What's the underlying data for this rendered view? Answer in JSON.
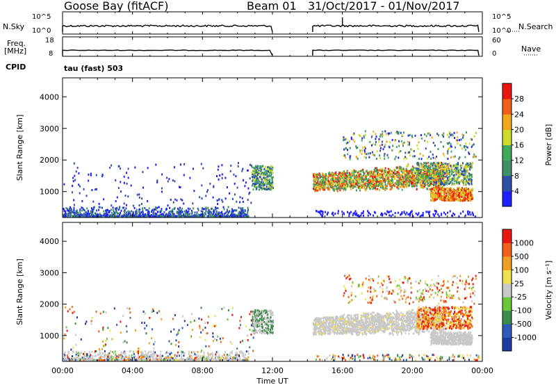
{
  "header": {
    "station": "Goose Bay (fitACF)",
    "beam": "Beam 01",
    "date_range": "31/Oct/2017 - 01/Nov/2017"
  },
  "strip1": {
    "left_label": "N.Sky",
    "left_ticks": [
      "10^5",
      "10^0"
    ],
    "right_ticks": [
      "10^5",
      "10^0"
    ],
    "right_label": "N.Search"
  },
  "strip2": {
    "left_label_1": "Freq.",
    "left_label_2": "[MHz]",
    "left_ticks": [
      "18",
      "8"
    ],
    "right_ticks": [
      "60",
      "0"
    ],
    "right_label": "Nave"
  },
  "cpid": {
    "label": "CPID",
    "mode": "tau (fast) 503"
  },
  "chart_data": [
    {
      "type": "heatmap",
      "name": "Power panel",
      "ylabel": "Slant Range [km]",
      "yticks": [
        1000,
        2000,
        3000,
        4000
      ],
      "ylim": [
        180,
        4600
      ],
      "xlim": [
        0,
        24
      ],
      "colorbar": {
        "label": "Power [dB]",
        "ticks": [
          "28",
          "24",
          "20",
          "16",
          "12",
          "8",
          "4"
        ]
      },
      "colors": [
        "#1e1eff",
        "#2e4fa8",
        "#3f8f6a",
        "#44a85a",
        "#cddc2a",
        "#f2a820",
        "#f06018",
        "#e81810"
      ],
      "regions": [
        {
          "t0": 0.0,
          "t1": 10.0,
          "r0": 200,
          "r1": 450,
          "level": "low-mid"
        },
        {
          "t0": 10.8,
          "t1": 12.0,
          "r0": 1000,
          "r1": 1800,
          "level": "mid"
        },
        {
          "t0": 14.3,
          "t1": 21.5,
          "r0": 1000,
          "r1": 1600,
          "level": "high"
        },
        {
          "t0": 21.0,
          "t1": 23.3,
          "r0": 700,
          "r1": 1100,
          "level": "high"
        }
      ]
    },
    {
      "type": "heatmap",
      "name": "Velocity panel",
      "ylabel": "Slant Range [km]",
      "yticks": [
        1000,
        2000,
        3000,
        4000
      ],
      "ylim": [
        180,
        4600
      ],
      "xlim": [
        0,
        24
      ],
      "xticks": [
        "00:00",
        "04:00",
        "08:00",
        "12:00",
        "16:00",
        "20:00",
        "00:00"
      ],
      "xlabel": "Time UT",
      "colorbar": {
        "label": "Velocity [m s⁻¹]",
        "ticks": [
          "1000",
          "500",
          "100",
          "25",
          "-25",
          "-100",
          "-500",
          "-1000"
        ]
      },
      "colors": [
        "#1e3ca0",
        "#2e5ab8",
        "#3c8a4a",
        "#6cc63a",
        "#c8c8c8",
        "#f0e050",
        "#f0a020",
        "#f06018",
        "#e81810"
      ]
    }
  ],
  "colors": {
    "ground_scatter": "#b4b4b4",
    "axis": "#000000"
  }
}
